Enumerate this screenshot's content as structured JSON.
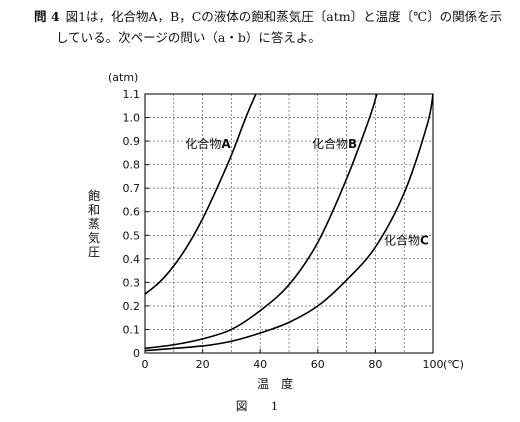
{
  "question": {
    "number": "問 4",
    "line1": "図1は，化合物A，B，Cの液体の飽和蒸気圧〔atm〕と温度〔℃〕の関係を示",
    "line2": "している。次ページの問い（a・b）に答えよ。"
  },
  "figure_caption": "図　1",
  "chart_data": {
    "type": "line",
    "title": "",
    "xlabel": "温　度",
    "x_unit_label": "(℃)",
    "ylabel": "飽和蒸気圧",
    "y_unit_label": "(atm)",
    "xlim": [
      0,
      100
    ],
    "ylim": [
      0,
      1.1
    ],
    "x_ticks": [
      0,
      20,
      40,
      60,
      80,
      100
    ],
    "x_tick_labels": [
      "0",
      "20",
      "40",
      "60",
      "80",
      "100"
    ],
    "y_ticks": [
      0,
      0.1,
      0.2,
      0.3,
      0.4,
      0.5,
      0.6,
      0.7,
      0.8,
      0.9,
      1.0,
      1.1
    ],
    "y_tick_labels": [
      "0",
      "0.1",
      "0.2",
      "0.3",
      "0.4",
      "0.5",
      "0.6",
      "0.7",
      "0.8",
      "0.9",
      "1.0",
      "1.1"
    ],
    "grid": true,
    "series": [
      {
        "name": "化合物A",
        "x": [
          0,
          5,
          10,
          15,
          20,
          25,
          30,
          35,
          38.5
        ],
        "y": [
          0.25,
          0.3,
          0.37,
          0.46,
          0.57,
          0.7,
          0.84,
          1.0,
          1.1
        ]
      },
      {
        "name": "化合物B",
        "x": [
          0,
          10,
          20,
          30,
          40,
          50,
          60,
          70,
          78,
          80.5
        ],
        "y": [
          0.02,
          0.035,
          0.06,
          0.1,
          0.18,
          0.29,
          0.47,
          0.74,
          1.0,
          1.1
        ]
      },
      {
        "name": "化合物C",
        "x": [
          0,
          20,
          30,
          40,
          50,
          60,
          70,
          80,
          90,
          98,
          100
        ],
        "y": [
          0.01,
          0.03,
          0.05,
          0.085,
          0.13,
          0.2,
          0.31,
          0.45,
          0.68,
          0.97,
          1.1
        ]
      }
    ],
    "line_color": "#000000"
  }
}
